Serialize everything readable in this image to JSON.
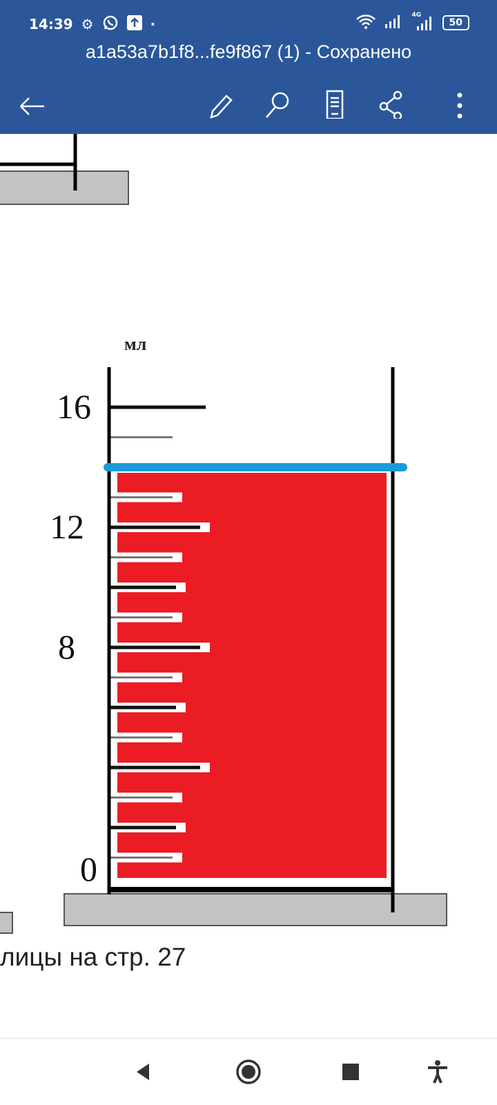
{
  "status_bar": {
    "time": "14:39",
    "icons": [
      "gear-icon",
      "whatsapp-icon",
      "upload-icon",
      "dot-icon",
      "wifi-icon",
      "signal-icon",
      "signal-4g-icon"
    ],
    "network_label": "4G",
    "battery": "50"
  },
  "app_bar": {
    "title": "a1a53a7b1f8...fe9f867 (1) - Сохранено",
    "background": "#2b579a",
    "actions": [
      "back-arrow-icon",
      "edit-pencil-icon",
      "search-icon",
      "reading-view-icon",
      "share-icon",
      "more-vert-icon"
    ]
  },
  "document": {
    "cylinder": {
      "unit_label": "мл",
      "tick_labels": [
        "16",
        "12",
        "8",
        "0"
      ],
      "scale_min": 0,
      "scale_max": 16,
      "liquid_level": 14,
      "liquid_color": "#ec1c24",
      "level_line_color": "#1a9ad6"
    },
    "caption": "лицы на стр. 27"
  },
  "nav_bar": {
    "buttons": [
      "back-triangle-icon",
      "home-circle-icon",
      "recents-square-icon",
      "accessibility-icon"
    ]
  }
}
